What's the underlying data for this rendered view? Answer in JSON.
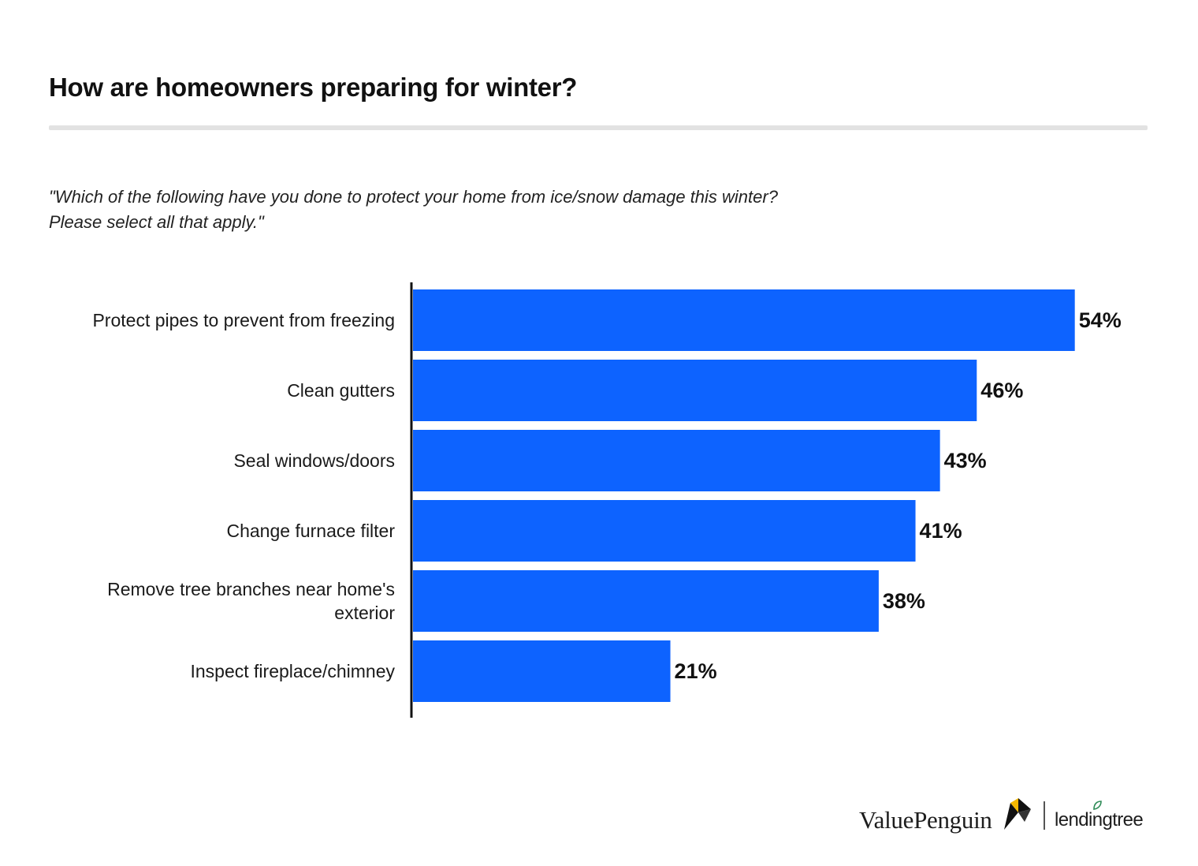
{
  "header": {
    "title": "How are homeowners preparing for winter?",
    "subtitle_line1": "\"Which of the following have you done to protect your home from ice/snow damage this winter?",
    "subtitle_line2": "Please select all that apply.\""
  },
  "chart_data": {
    "type": "bar",
    "orientation": "horizontal",
    "categories": [
      "Protect pipes to prevent from freezing",
      "Clean gutters",
      "Seal windows/doors",
      "Change furnace filter",
      "Remove tree branches near home's exterior",
      "Inspect fireplace/chimney"
    ],
    "values": [
      54,
      46,
      43,
      41,
      38,
      21
    ],
    "value_labels": [
      "54%",
      "46%",
      "43%",
      "41%",
      "38%",
      "21%"
    ],
    "unit": "%",
    "xlim": [
      0,
      60
    ],
    "grid": false,
    "bar_color": "#0d63ff",
    "axis_color": "#111111"
  },
  "footer": {
    "brand_primary": "ValuePenguin",
    "brand_secondary": "lendingtree",
    "logo_icon": "penguin-mark-icon",
    "leaf_icon": "leaf-icon",
    "logo_colors": [
      "#111111",
      "#f5b800"
    ],
    "leaf_color": "#2e8b57"
  }
}
